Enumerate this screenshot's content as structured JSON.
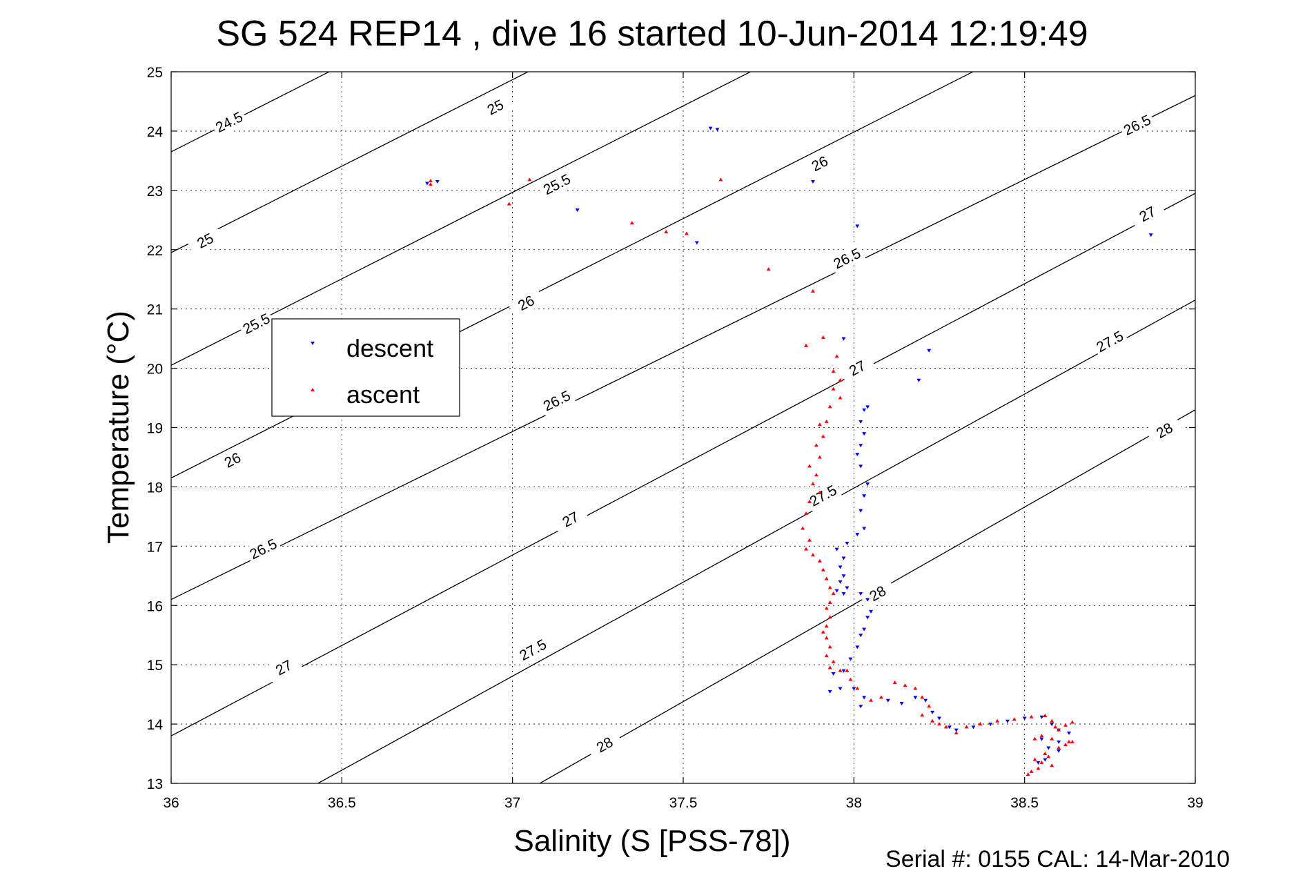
{
  "chart_data": {
    "type": "scatter",
    "title": "SG 524   REP14  , dive 16 started 10-Jun-2014 12:19:49",
    "xlabel": "Salinity (S [PSS-78])",
    "ylabel": "Temperature (°C)",
    "xlim": [
      36,
      39
    ],
    "ylim": [
      13,
      25
    ],
    "xticks": [
      36,
      36.5,
      37,
      37.5,
      38,
      38.5,
      39
    ],
    "yticks": [
      13,
      14,
      15,
      16,
      17,
      18,
      19,
      20,
      21,
      22,
      23,
      24,
      25
    ],
    "xtick_labels": [
      "36",
      "36.5",
      "37",
      "37.5",
      "38",
      "38.5",
      "39"
    ],
    "ytick_labels": [
      "13",
      "14",
      "15",
      "16",
      "17",
      "18",
      "19",
      "20",
      "21",
      "22",
      "23",
      "24",
      "25"
    ],
    "grid": true,
    "legend_position": "upper-left",
    "footer": "Serial #: 0155  CAL: 14-Mar-2010",
    "density_contours": [
      {
        "value": "24.5",
        "points": [
          [
            36.0,
            23.65
          ],
          [
            39.0,
            32.4
          ]
        ],
        "label_at": [
          36.17,
          24.15
        ]
      },
      {
        "value": "25",
        "points": [
          [
            36.0,
            21.95
          ],
          [
            39.0,
            30.7
          ]
        ],
        "label_at": [
          36.1,
          22.15
        ]
      },
      {
        "value": "25",
        "points": [
          [
            36.0,
            21.95
          ],
          [
            39.0,
            30.7
          ]
        ],
        "label_at": [
          36.95,
          24.4
        ]
      },
      {
        "value": "25.5",
        "points": [
          [
            36.0,
            20.05
          ],
          [
            39.0,
            28.8
          ]
        ],
        "label_at": [
          36.25,
          20.75
        ]
      },
      {
        "value": "25.5",
        "points": [
          [
            36.0,
            20.05
          ],
          [
            39.0,
            28.8
          ]
        ],
        "label_at": [
          37.13,
          23.1
        ]
      },
      {
        "value": "26",
        "points": [
          [
            36.0,
            18.15
          ],
          [
            39.0,
            26.9
          ]
        ],
        "label_at": [
          36.18,
          18.45
        ]
      },
      {
        "value": "26",
        "points": [
          [
            36.0,
            18.15
          ],
          [
            39.0,
            26.9
          ]
        ],
        "label_at": [
          37.04,
          21.1
        ]
      },
      {
        "value": "26",
        "points": [
          [
            36.0,
            18.15
          ],
          [
            39.0,
            26.9
          ]
        ],
        "label_at": [
          37.9,
          23.45
        ]
      },
      {
        "value": "26.5",
        "points": [
          [
            36.0,
            16.1
          ],
          [
            39.0,
            24.6
          ]
        ],
        "label_at": [
          36.27,
          16.95
        ]
      },
      {
        "value": "26.5",
        "points": [
          [
            36.0,
            16.1
          ],
          [
            39.0,
            24.6
          ]
        ],
        "label_at": [
          37.13,
          19.45
        ]
      },
      {
        "value": "26.5",
        "points": [
          [
            36.0,
            16.1
          ],
          [
            39.0,
            24.6
          ]
        ],
        "label_at": [
          37.98,
          21.85
        ]
      },
      {
        "value": "26.5",
        "points": [
          [
            36.0,
            16.1
          ],
          [
            39.0,
            24.6
          ]
        ],
        "label_at": [
          38.83,
          24.1
        ]
      },
      {
        "value": "27",
        "points": [
          [
            36.0,
            13.8
          ],
          [
            39.0,
            22.95
          ]
        ],
        "label_at": [
          36.33,
          14.95
        ]
      },
      {
        "value": "27",
        "points": [
          [
            36.0,
            13.8
          ],
          [
            39.0,
            22.95
          ]
        ],
        "label_at": [
          37.17,
          17.45
        ]
      },
      {
        "value": "27",
        "points": [
          [
            36.0,
            13.8
          ],
          [
            39.0,
            22.95
          ]
        ],
        "label_at": [
          38.01,
          20.0
        ]
      },
      {
        "value": "27",
        "points": [
          [
            36.0,
            13.8
          ],
          [
            39.0,
            22.95
          ]
        ],
        "label_at": [
          38.86,
          22.6
        ]
      },
      {
        "value": "27.5",
        "points": [
          [
            36.43,
            13.0
          ],
          [
            39.0,
            21.15
          ]
        ],
        "label_at": [
          37.06,
          15.25
        ]
      },
      {
        "value": "27.5",
        "points": [
          [
            36.43,
            13.0
          ],
          [
            39.0,
            21.15
          ]
        ],
        "label_at": [
          37.91,
          17.85
        ]
      },
      {
        "value": "27.5",
        "points": [
          [
            36.43,
            13.0
          ],
          [
            39.0,
            21.15
          ]
        ],
        "label_at": [
          38.75,
          20.45
        ]
      },
      {
        "value": "28",
        "points": [
          [
            37.08,
            13.0
          ],
          [
            39.0,
            19.3
          ]
        ],
        "label_at": [
          37.27,
          13.65
        ]
      },
      {
        "value": "28",
        "points": [
          [
            37.08,
            13.0
          ],
          [
            39.0,
            19.3
          ]
        ],
        "label_at": [
          38.07,
          16.2
        ]
      },
      {
        "value": "28",
        "points": [
          [
            37.08,
            13.0
          ],
          [
            39.0,
            19.3
          ]
        ],
        "label_at": [
          38.91,
          18.95
        ]
      }
    ],
    "series": [
      {
        "name": "descent",
        "color": "#0000ff",
        "marker": "triangle-down",
        "points": [
          [
            37.58,
            24.05
          ],
          [
            37.6,
            24.03
          ],
          [
            36.78,
            23.15
          ],
          [
            36.75,
            23.12
          ],
          [
            37.19,
            22.67
          ],
          [
            37.54,
            22.12
          ],
          [
            37.88,
            23.15
          ],
          [
            38.01,
            22.4
          ],
          [
            38.87,
            22.25
          ],
          [
            37.97,
            20.5
          ],
          [
            38.22,
            20.3
          ],
          [
            38.19,
            19.8
          ],
          [
            38.04,
            19.35
          ],
          [
            38.03,
            19.3
          ],
          [
            38.02,
            19.1
          ],
          [
            38.03,
            18.9
          ],
          [
            38.02,
            18.7
          ],
          [
            38.01,
            18.55
          ],
          [
            38.02,
            18.35
          ],
          [
            38.04,
            18.05
          ],
          [
            38.03,
            17.85
          ],
          [
            38.02,
            17.6
          ],
          [
            38.03,
            17.3
          ],
          [
            38.01,
            17.2
          ],
          [
            37.98,
            17.05
          ],
          [
            37.95,
            16.95
          ],
          [
            37.97,
            16.8
          ],
          [
            37.96,
            16.65
          ],
          [
            37.97,
            16.5
          ],
          [
            37.96,
            16.4
          ],
          [
            37.98,
            16.3
          ],
          [
            37.95,
            16.25
          ],
          [
            37.97,
            16.2
          ],
          [
            38.02,
            16.2
          ],
          [
            38.04,
            16.1
          ],
          [
            38.05,
            15.9
          ],
          [
            38.04,
            15.8
          ],
          [
            38.03,
            15.6
          ],
          [
            38.02,
            15.5
          ],
          [
            38.01,
            15.3
          ],
          [
            37.99,
            15.1
          ],
          [
            37.97,
            14.9
          ],
          [
            37.94,
            14.85
          ],
          [
            37.96,
            14.6
          ],
          [
            37.93,
            14.55
          ],
          [
            38.0,
            14.6
          ],
          [
            38.03,
            14.45
          ],
          [
            38.02,
            14.3
          ],
          [
            38.1,
            14.4
          ],
          [
            38.14,
            14.35
          ],
          [
            38.18,
            14.45
          ],
          [
            38.21,
            14.4
          ],
          [
            38.23,
            14.2
          ],
          [
            38.25,
            14.1
          ],
          [
            38.28,
            13.95
          ],
          [
            38.3,
            13.9
          ],
          [
            38.35,
            13.95
          ],
          [
            38.4,
            14.0
          ],
          [
            38.45,
            14.05
          ],
          [
            38.5,
            14.1
          ],
          [
            38.55,
            14.12
          ],
          [
            38.58,
            14.0
          ],
          [
            38.6,
            13.9
          ],
          [
            38.63,
            13.85
          ],
          [
            38.55,
            13.75
          ],
          [
            38.57,
            13.6
          ],
          [
            38.6,
            13.55
          ],
          [
            38.56,
            13.4
          ],
          [
            38.54,
            13.35
          ],
          [
            38.6,
            13.7
          ]
        ]
      },
      {
        "name": "ascent",
        "color": "#ff0000",
        "marker": "triangle-up",
        "points": [
          [
            36.76,
            23.16
          ],
          [
            36.76,
            23.1
          ],
          [
            37.05,
            23.18
          ],
          [
            36.99,
            22.77
          ],
          [
            37.35,
            22.45
          ],
          [
            37.45,
            22.3
          ],
          [
            37.51,
            22.27
          ],
          [
            37.61,
            23.18
          ],
          [
            37.75,
            21.67
          ],
          [
            37.88,
            21.3
          ],
          [
            37.86,
            20.38
          ],
          [
            37.91,
            20.52
          ],
          [
            37.95,
            20.2
          ],
          [
            37.94,
            19.95
          ],
          [
            37.96,
            19.8
          ],
          [
            37.94,
            19.65
          ],
          [
            37.96,
            19.5
          ],
          [
            37.93,
            19.35
          ],
          [
            37.92,
            19.1
          ],
          [
            37.9,
            19.05
          ],
          [
            37.91,
            18.85
          ],
          [
            37.89,
            18.7
          ],
          [
            37.9,
            18.5
          ],
          [
            37.87,
            18.35
          ],
          [
            37.89,
            18.2
          ],
          [
            37.88,
            18.05
          ],
          [
            37.9,
            17.9
          ],
          [
            37.87,
            17.75
          ],
          [
            37.86,
            17.55
          ],
          [
            37.85,
            17.3
          ],
          [
            37.87,
            17.1
          ],
          [
            37.86,
            16.95
          ],
          [
            37.88,
            16.85
          ],
          [
            37.9,
            16.75
          ],
          [
            37.91,
            16.6
          ],
          [
            37.92,
            16.45
          ],
          [
            37.93,
            16.3
          ],
          [
            37.94,
            16.2
          ],
          [
            37.93,
            16.05
          ],
          [
            37.92,
            15.95
          ],
          [
            37.93,
            15.8
          ],
          [
            37.92,
            15.65
          ],
          [
            37.91,
            15.55
          ],
          [
            37.92,
            15.45
          ],
          [
            37.93,
            15.3
          ],
          [
            37.92,
            15.15
          ],
          [
            37.94,
            15.05
          ],
          [
            37.93,
            14.95
          ],
          [
            37.96,
            14.9
          ],
          [
            37.98,
            14.9
          ],
          [
            37.99,
            14.75
          ],
          [
            38.01,
            14.6
          ],
          [
            38.05,
            14.4
          ],
          [
            38.08,
            14.45
          ],
          [
            38.12,
            14.7
          ],
          [
            38.15,
            14.65
          ],
          [
            38.18,
            14.6
          ],
          [
            38.2,
            14.45
          ],
          [
            38.22,
            14.3
          ],
          [
            38.2,
            14.15
          ],
          [
            38.23,
            14.05
          ],
          [
            38.25,
            14.0
          ],
          [
            38.27,
            13.95
          ],
          [
            38.3,
            13.85
          ],
          [
            38.33,
            13.95
          ],
          [
            38.37,
            14.0
          ],
          [
            38.42,
            14.05
          ],
          [
            38.47,
            14.08
          ],
          [
            38.52,
            14.12
          ],
          [
            38.56,
            14.14
          ],
          [
            38.58,
            14.05
          ],
          [
            38.59,
            13.95
          ],
          [
            38.62,
            13.98
          ],
          [
            38.64,
            14.03
          ],
          [
            38.6,
            13.9
          ],
          [
            38.55,
            13.8
          ],
          [
            38.53,
            13.75
          ],
          [
            38.58,
            13.75
          ],
          [
            38.63,
            13.7
          ],
          [
            38.6,
            13.6
          ],
          [
            38.56,
            13.5
          ],
          [
            38.53,
            13.4
          ],
          [
            38.55,
            13.35
          ],
          [
            38.58,
            13.3
          ],
          [
            38.52,
            13.2
          ],
          [
            38.51,
            13.15
          ],
          [
            38.54,
            13.25
          ],
          [
            38.57,
            13.45
          ],
          [
            38.62,
            13.65
          ],
          [
            38.64,
            13.7
          ]
        ]
      }
    ]
  }
}
